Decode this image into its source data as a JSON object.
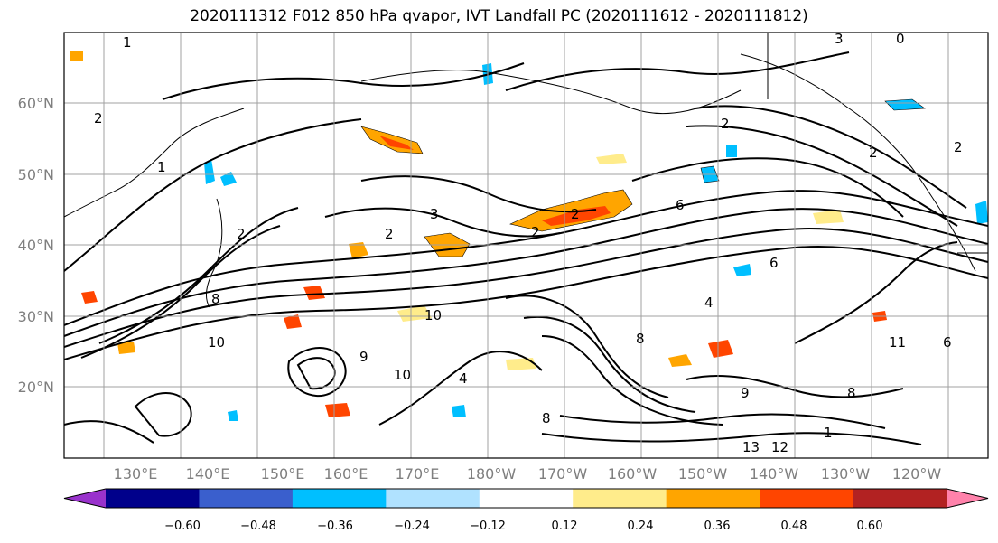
{
  "title": "2020111312 F012 850 hPa qvapor, IVT Landfall PC (2020111612 - 2020111812)",
  "lat_labels": [
    "60°N",
    "50°N",
    "40°N",
    "30°N",
    "20°N"
  ],
  "lon_labels": [
    "130°E",
    "140°E",
    "150°E",
    "160°E",
    "170°E",
    "180°W",
    "170°W",
    "160°W",
    "150°W",
    "140°W",
    "130°W",
    "120°W"
  ],
  "colorbar": {
    "ticks": [
      "−0.60",
      "−0.48",
      "−0.36",
      "−0.24",
      "−0.12",
      "0.12",
      "0.24",
      "0.36",
      "0.48",
      "0.60"
    ],
    "colors": [
      "#9932cc",
      "#00008b",
      "#3a5fcd",
      "#00bfff",
      "#b0e2ff",
      "#ffffff",
      "#ffec8b",
      "#ffa500",
      "#ff4500",
      "#b22222",
      "#ff82ab"
    ]
  },
  "contour_labels": [
    "1",
    "2",
    "2",
    "1",
    "2",
    "3",
    "2",
    "2",
    "6",
    "2",
    "6",
    "8",
    "10",
    "10",
    "9",
    "8",
    "9",
    "4",
    "0",
    "2",
    "3",
    "2",
    "4",
    "10",
    "8",
    "13",
    "12",
    "1",
    "11",
    "6",
    "8"
  ]
}
